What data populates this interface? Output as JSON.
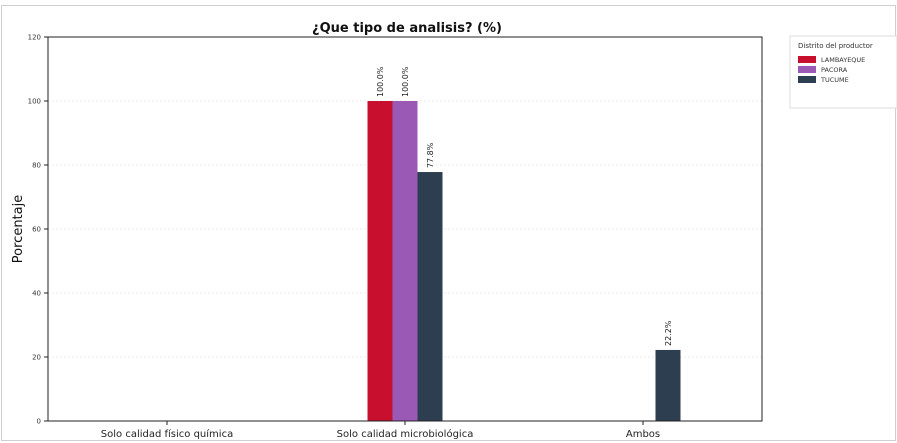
{
  "chart_data": {
    "type": "bar",
    "title": "¿Que tipo de analisis? (%)",
    "ylabel": "Porcentaje",
    "xlabel": "",
    "ylim": [
      0,
      120
    ],
    "yticks": [
      0,
      20,
      40,
      60,
      80,
      100,
      120
    ],
    "grid": true,
    "categories": [
      "Solo calidad físico química",
      "Solo calidad microbiológica",
      "Ambos"
    ],
    "legend": {
      "title": "Distrito del productor",
      "placement": "outside-right"
    },
    "series": [
      {
        "name": "LAMBAYEQUE",
        "color": "#c8102e",
        "values": [
          0,
          100.0,
          0
        ],
        "labels": [
          "",
          "100.0%",
          ""
        ]
      },
      {
        "name": "PACORA",
        "color": "#9b59b6",
        "values": [
          0,
          100.0,
          0
        ],
        "labels": [
          "",
          "100.0%",
          ""
        ]
      },
      {
        "name": "TUCUME",
        "color": "#2c3e50",
        "values": [
          0,
          77.8,
          22.2
        ],
        "labels": [
          "",
          "77.8%",
          "22.2%"
        ]
      }
    ]
  }
}
